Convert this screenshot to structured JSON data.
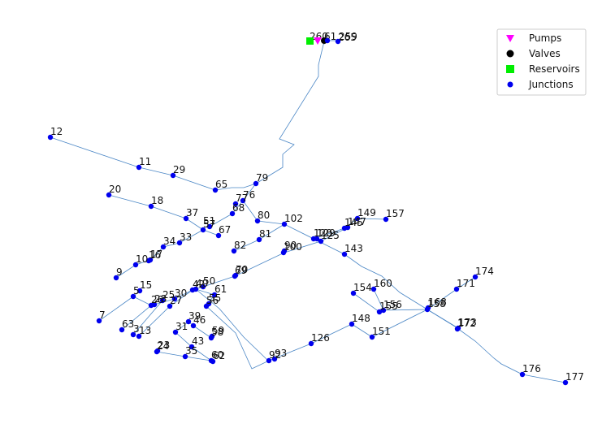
{
  "colors": {
    "pipe": "#4a86c5",
    "junction": "#0000ee",
    "pump": "#ff00ff",
    "valve": "#000000",
    "reservoir": "#00ee00"
  },
  "legend": {
    "pumps": "Pumps",
    "valves": "Valves",
    "reservoirs": "Reservoirs",
    "junctions": "Junctions"
  },
  "node_labels": [
    "12",
    "11",
    "29",
    "65",
    "79",
    "20",
    "18",
    "37",
    "77",
    "76",
    "68",
    "80",
    "102",
    "57",
    "51",
    "67",
    "34",
    "33",
    "17",
    "16",
    "10",
    "9",
    "82",
    "81",
    "100",
    "90",
    "120",
    "129",
    "125",
    "143",
    "149",
    "147",
    "145",
    "157",
    "174",
    "171",
    "154",
    "160",
    "156",
    "155",
    "158",
    "168",
    "172",
    "173",
    "148",
    "151",
    "126",
    "93",
    "92",
    "176",
    "177",
    "15",
    "5",
    "7",
    "26",
    "28",
    "25",
    "30",
    "27",
    "42",
    "40",
    "50",
    "61",
    "56",
    "55",
    "70",
    "69",
    "63",
    "3",
    "13",
    "31",
    "39",
    "46",
    "24",
    "23",
    "35",
    "43",
    "58",
    "59",
    "60",
    "62",
    "260",
    "61",
    "265",
    "259"
  ]
}
